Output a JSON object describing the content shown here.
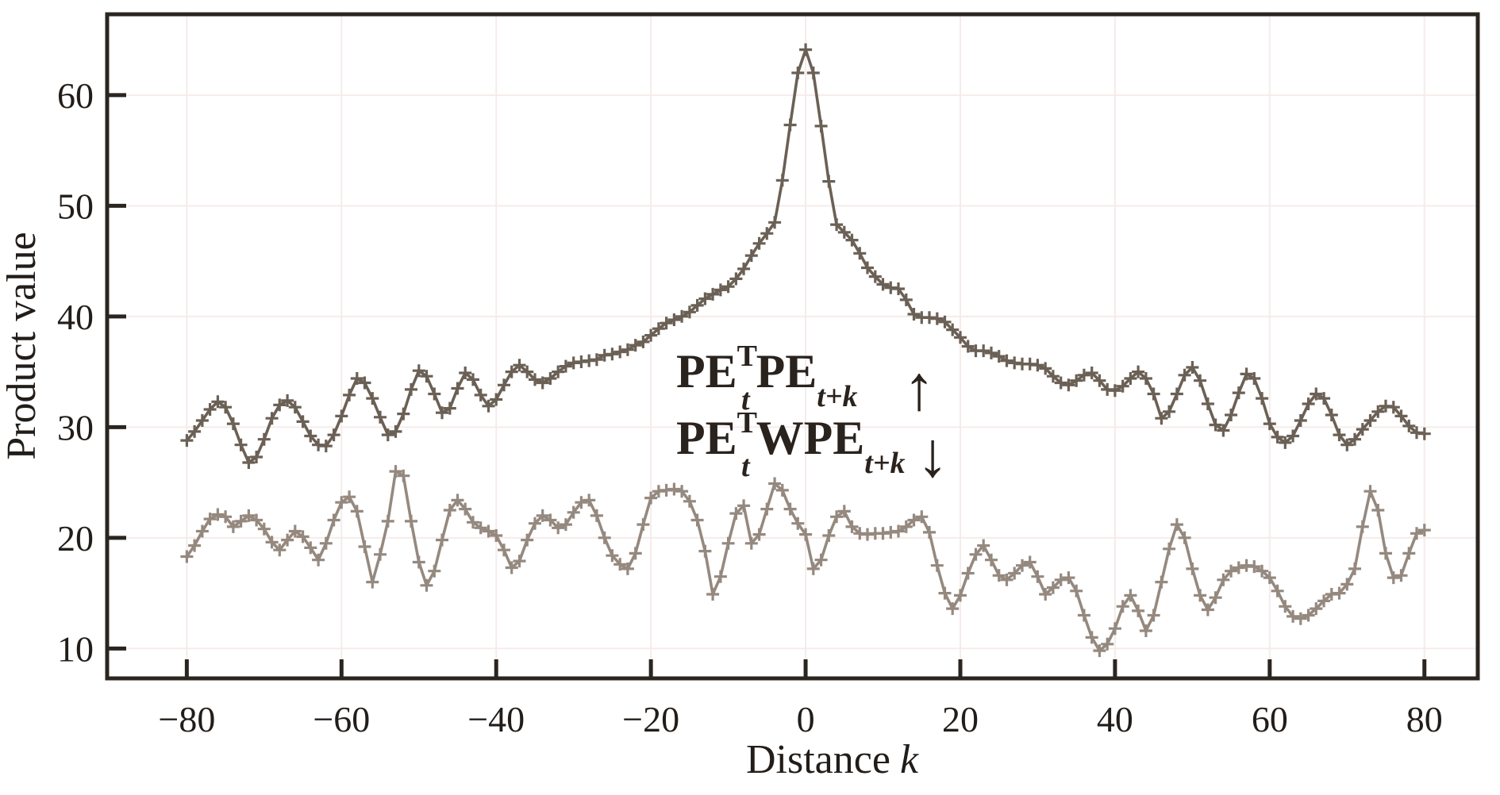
{
  "figure": {
    "background": "#ffffff"
  },
  "colors": {
    "axis": "#2b2520",
    "text": "#221d19",
    "grid": "#f6ebea",
    "upper_series": "#6b6055",
    "lower_series": "#95897f"
  },
  "axes": {
    "xlabel_word": "Distance",
    "xlabel_var": "k",
    "ylabel": "Product value",
    "xlim": [
      -90.3,
      86.9
    ],
    "ylim": [
      7.3,
      67.3
    ],
    "grid": "faint",
    "xticks": [
      {
        "v": -80,
        "label": "−80"
      },
      {
        "v": -60,
        "label": "−60"
      },
      {
        "v": -40,
        "label": "−40"
      },
      {
        "v": -20,
        "label": "−20"
      },
      {
        "v": 0,
        "label": "0"
      },
      {
        "v": 20,
        "label": "20"
      },
      {
        "v": 40,
        "label": "40"
      },
      {
        "v": 60,
        "label": "60"
      },
      {
        "v": 80,
        "label": "80"
      }
    ],
    "yticks": [
      {
        "v": 10,
        "label": "10"
      },
      {
        "v": 20,
        "label": "20"
      },
      {
        "v": 30,
        "label": "30"
      },
      {
        "v": 40,
        "label": "40"
      },
      {
        "v": 50,
        "label": "50"
      },
      {
        "v": 60,
        "label": "60"
      }
    ]
  },
  "annotation": {
    "line1": {
      "pe1": "PE",
      "sup1": "T",
      "sub1": "t",
      "pe2": "PE",
      "sub2": "t+k",
      "arrow": "↑"
    },
    "line2": {
      "pe1": "PE",
      "sup1": "T",
      "sub1": "t",
      "pe2": "WPE",
      "sub2": "t+k",
      "arrow": "↓"
    }
  },
  "chart_data": {
    "type": "line",
    "title": "",
    "xlabel": "Distance k",
    "ylabel": "Product value",
    "xlim": [
      -90.3,
      86.9
    ],
    "ylim": [
      7.3,
      67.3
    ],
    "legend_position": "inline-annotation",
    "marker": "plus",
    "x": {
      "start": -80,
      "end": 80,
      "step": 1
    },
    "series": [
      {
        "name": "PE_t^T PE_{t+k}",
        "color": "#6b6055",
        "values": [
          28.8,
          29.6,
          30.6,
          31.6,
          32.3,
          31.8,
          30.3,
          28.4,
          26.8,
          27.3,
          28.9,
          30.8,
          32.0,
          32.4,
          31.8,
          30.5,
          29.2,
          28.4,
          28.3,
          29.3,
          31.0,
          32.9,
          34.4,
          34.0,
          32.6,
          30.9,
          29.3,
          29.6,
          31.2,
          33.4,
          35.1,
          34.6,
          33.0,
          31.3,
          31.7,
          33.5,
          34.9,
          34.3,
          32.9,
          31.9,
          32.5,
          33.8,
          35.0,
          35.6,
          35.0,
          34.3,
          34.0,
          34.4,
          35.0,
          35.5,
          35.8,
          35.9,
          36.0,
          36.1,
          36.5,
          36.6,
          36.8,
          37.0,
          37.4,
          37.7,
          38.3,
          38.9,
          39.4,
          39.7,
          40.0,
          40.4,
          41.0,
          41.6,
          42.0,
          42.4,
          42.7,
          43.4,
          44.3,
          45.5,
          46.6,
          47.5,
          48.5,
          52.3,
          57.3,
          62.0,
          64.1,
          62.0,
          57.2,
          52.2,
          48.3,
          47.6,
          46.9,
          45.7,
          44.4,
          43.6,
          42.9,
          42.6,
          42.5,
          41.5,
          40.2,
          39.9,
          39.9,
          39.8,
          39.5,
          38.8,
          38.1,
          37.3,
          36.9,
          36.9,
          36.7,
          36.4,
          36.0,
          35.8,
          35.7,
          35.7,
          35.6,
          35.3,
          34.6,
          34.0,
          33.8,
          34.2,
          34.7,
          34.9,
          34.2,
          33.4,
          33.3,
          33.7,
          34.4,
          35.0,
          34.4,
          33.0,
          30.8,
          31.4,
          33.0,
          34.7,
          35.4,
          34.2,
          32.1,
          30.2,
          29.7,
          31.1,
          33.1,
          34.8,
          34.4,
          32.6,
          30.3,
          29.1,
          28.6,
          29.2,
          30.6,
          32.1,
          33.0,
          32.6,
          31.1,
          29.3,
          28.4,
          28.9,
          29.8,
          30.6,
          31.4,
          31.9,
          31.8,
          31.0,
          30.1,
          29.5,
          29.4
        ]
      },
      {
        "name": "PE_t^T WPE_{t+k}",
        "color": "#95897f",
        "values": [
          18.3,
          19.3,
          20.6,
          21.7,
          22.1,
          21.9,
          21.0,
          21.5,
          22.0,
          21.6,
          20.8,
          19.6,
          18.9,
          19.8,
          20.6,
          20.1,
          19.1,
          18.0,
          19.5,
          21.6,
          23.2,
          23.7,
          22.4,
          19.2,
          16.0,
          18.5,
          21.5,
          26.0,
          25.6,
          21.5,
          17.8,
          15.7,
          17.0,
          19.8,
          22.5,
          23.4,
          22.6,
          21.4,
          20.9,
          20.6,
          20.2,
          18.9,
          17.3,
          17.9,
          19.8,
          21.3,
          22.0,
          21.6,
          20.9,
          21.2,
          22.3,
          23.2,
          23.4,
          22.0,
          20.0,
          18.4,
          17.6,
          17.2,
          18.6,
          21.2,
          23.6,
          24.2,
          24.3,
          24.4,
          24.2,
          23.3,
          21.6,
          18.8,
          14.9,
          16.5,
          19.5,
          22.2,
          22.9,
          19.5,
          20.3,
          22.6,
          24.9,
          24.3,
          22.6,
          21.3,
          20.3,
          17.2,
          18.0,
          20.2,
          21.9,
          22.4,
          21.0,
          20.4,
          20.3,
          20.4,
          20.4,
          20.5,
          20.6,
          21.0,
          21.6,
          21.9,
          20.5,
          17.5,
          15.0,
          13.6,
          14.8,
          16.8,
          18.5,
          19.3,
          18.0,
          16.6,
          16.2,
          16.8,
          17.5,
          17.8,
          16.5,
          14.9,
          15.5,
          16.2,
          16.4,
          15.2,
          13.0,
          11.0,
          9.8,
          10.4,
          11.8,
          13.8,
          14.8,
          13.4,
          11.6,
          13.0,
          16.0,
          19.0,
          21.2,
          20.0,
          17.2,
          14.8,
          13.5,
          14.6,
          16.2,
          17.0,
          17.3,
          17.5,
          17.4,
          17.0,
          16.4,
          15.2,
          13.8,
          12.9,
          12.7,
          13.0,
          13.6,
          14.3,
          14.9,
          15.0,
          15.8,
          17.2,
          21.0,
          24.2,
          22.5,
          18.6,
          16.4,
          16.6,
          18.6,
          20.4,
          20.7
        ]
      }
    ]
  }
}
